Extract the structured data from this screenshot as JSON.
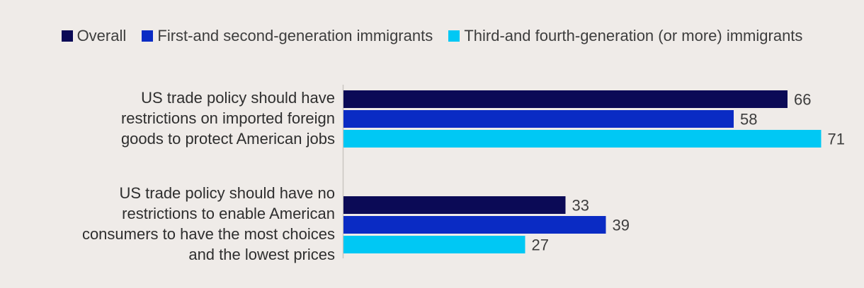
{
  "chart_data": {
    "type": "bar",
    "orientation": "horizontal",
    "categories": [
      "US trade policy should have restrictions on imported foreign goods to protect American jobs",
      "US trade policy should have no restrictions to enable American consumers to have the most choices and the lowest prices"
    ],
    "series": [
      {
        "name": "Overall",
        "values": [
          66,
          33
        ],
        "color": "#0b0a56"
      },
      {
        "name": "First-and second-generation immigrants",
        "values": [
          58,
          39
        ],
        "color": "#0a2bc4"
      },
      {
        "name": "Third-and fourth-generation (or more) immigrants",
        "values": [
          71,
          27
        ],
        "color": "#00c8f4"
      }
    ],
    "xlim": [
      0,
      100
    ],
    "grid": false,
    "legend_position": "top"
  },
  "labels": {
    "cat0_lines": [
      "US trade policy should have",
      "restrictions on imported foreign",
      "goods to protect American jobs"
    ],
    "cat1_lines": [
      "US trade policy should have no",
      "restrictions to enable American",
      "consumers to have the most choices",
      "and the lowest prices"
    ]
  },
  "colors": {
    "background": "#efebe8",
    "axis": "#c9c5c2",
    "value_text": "#3d3d3d"
  }
}
